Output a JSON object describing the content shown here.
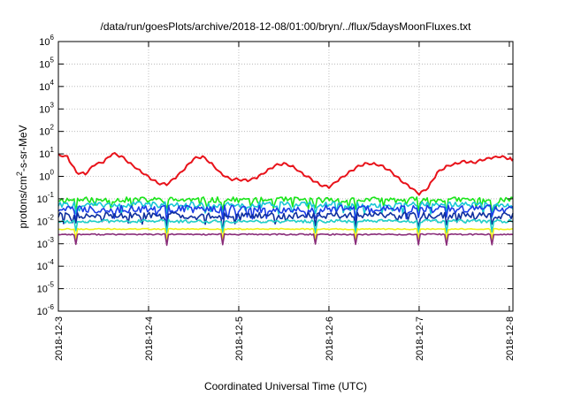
{
  "chart_data": {
    "type": "line",
    "title": "/data/run/goesPlots/archive/2018-12-08/01:00/bryn/../flux/5daysMoonFluxes.txt",
    "xlabel": "Coordinated Universal Time (UTC)",
    "ylabel": "protons/cm²-s-sr-MeV",
    "ylabel_parts": {
      "pre": "protons/cm",
      "sup": "2",
      "post": "-s-sr-MeV"
    },
    "yscale": "log",
    "ylim_exp": [
      -6,
      6
    ],
    "y_tick_exponents": [
      6,
      5,
      4,
      3,
      2,
      1,
      0,
      -1,
      -2,
      -3,
      -4,
      -5,
      -6
    ],
    "y_tick_base": "10",
    "xlim": [
      "2018-12-03",
      "2018-12-08 01:00"
    ],
    "x_ticks": [
      "2018-12-3",
      "2018-12-4",
      "2018-12-5",
      "2018-12-6",
      "2018-12-7",
      "2018-12-8"
    ],
    "grid": true,
    "legend": "none",
    "series": [
      {
        "color": "#e8121a",
        "x_days": [
          0,
          0.1,
          0.2,
          0.3,
          0.4,
          0.5,
          0.6,
          0.7,
          0.8,
          0.9,
          1.0,
          1.1,
          1.2,
          1.3,
          1.4,
          1.5,
          1.6,
          1.7,
          1.8,
          1.9,
          2.0,
          2.1,
          2.2,
          2.3,
          2.4,
          2.5,
          2.6,
          2.7,
          2.8,
          2.9,
          3.0,
          3.1,
          3.2,
          3.3,
          3.4,
          3.5,
          3.6,
          3.7,
          3.8,
          3.9,
          4.0,
          4.1,
          4.2,
          4.3,
          4.4,
          4.5,
          4.6,
          4.7,
          4.8,
          4.9,
          5.0,
          5.04
        ],
        "values": [
          10,
          8,
          1.5,
          1.2,
          3,
          4,
          10,
          8,
          4,
          2,
          1,
          0.5,
          0.4,
          0.8,
          2,
          6,
          8,
          4,
          1.5,
          0.8,
          0.7,
          0.6,
          0.8,
          1.5,
          3,
          4,
          3,
          1.5,
          0.8,
          0.4,
          0.3,
          0.6,
          1.2,
          2.5,
          4,
          4,
          3,
          1.5,
          0.6,
          0.3,
          0.15,
          0.3,
          1.5,
          3,
          4,
          5,
          4,
          5,
          6,
          7,
          6,
          6
        ]
      },
      {
        "color": "#19e619",
        "level": 0.09,
        "jitter": 0.25,
        "seed": 11
      },
      {
        "color": "#18c7d6",
        "level": 0.055,
        "jitter": 0.25,
        "seed": 22
      },
      {
        "color": "#1a3ce6",
        "level": 0.035,
        "jitter": 0.35,
        "seed": 33
      },
      {
        "color": "#0f2f9e",
        "level": 0.018,
        "jitter": 0.3,
        "seed": 44
      },
      {
        "color": "#1fcfc8",
        "level": 0.01,
        "jitter": 0.15,
        "seed": 55
      },
      {
        "color": "#f0f014",
        "level": 0.0045,
        "jitter": 0.05,
        "seed": 66
      },
      {
        "color": "#8a2d7a",
        "level": 0.0026,
        "jitter": 0.06,
        "seed": 77
      }
    ]
  }
}
